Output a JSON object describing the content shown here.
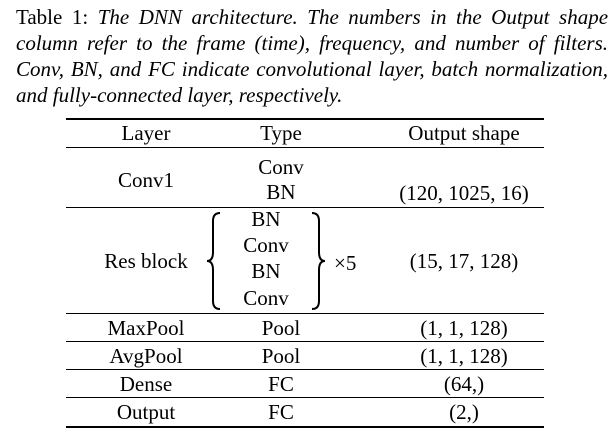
{
  "caption": {
    "label": "Table 1:",
    "text": "The DNN architecture. The numbers in the Output shape column refer to the frame (time), frequency, and number of filters. Conv, BN, and FC indicate convolutional layer, batch normalization, and fully-connected layer, respectively."
  },
  "table": {
    "headers": [
      "Layer",
      "Type",
      "Output shape"
    ],
    "rows": [
      {
        "layer": "Conv1",
        "types": [
          "Conv",
          "BN"
        ],
        "output": "(120, 1025, 16)"
      },
      {
        "layer": "Res block",
        "types": [
          "BN",
          "Conv",
          "BN",
          "Conv"
        ],
        "multiplier": "×5",
        "output": "(15, 17, 128)"
      },
      {
        "layer": "MaxPool",
        "types": [
          "Pool"
        ],
        "output": "(1, 1, 128)"
      },
      {
        "layer": "AvgPool",
        "types": [
          "Pool"
        ],
        "output": "(1, 1, 128)"
      },
      {
        "layer": "Dense",
        "types": [
          "FC"
        ],
        "output": "(64,)"
      },
      {
        "layer": "Output",
        "types": [
          "FC"
        ],
        "output": "(2,)"
      }
    ]
  }
}
